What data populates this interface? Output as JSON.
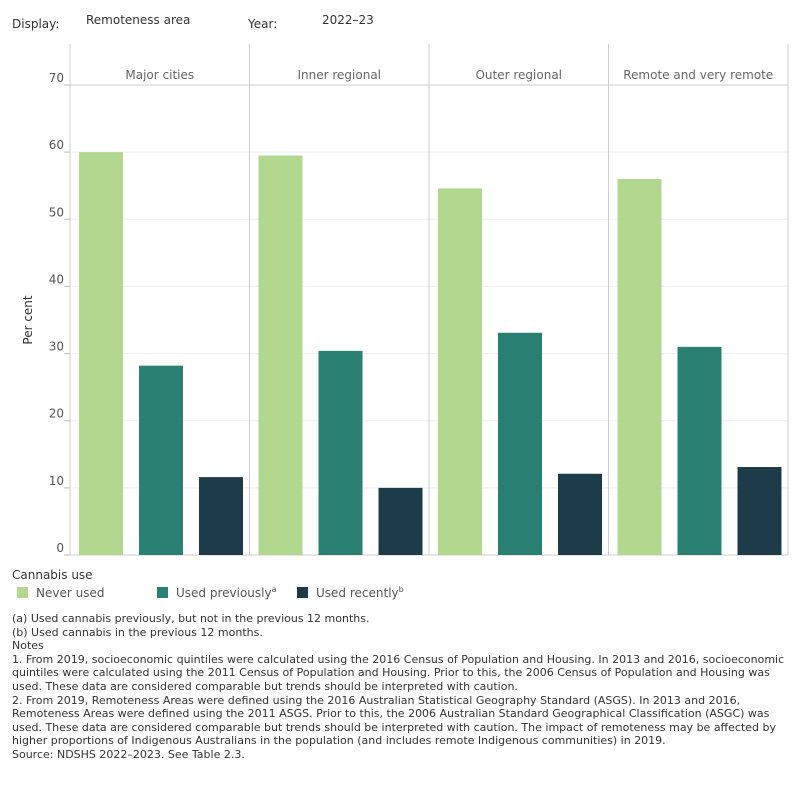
{
  "controls": {
    "display_label": "Display:",
    "display_value": "Remoteness area",
    "year_label": "Year:",
    "year_value": "2022–23"
  },
  "chart_data": {
    "type": "bar",
    "ylabel": "Per cent",
    "ylim": [
      0,
      70
    ],
    "yticks": [
      0,
      10,
      20,
      30,
      40,
      50,
      60,
      70
    ],
    "grid": true,
    "panels": [
      "Major cities",
      "Inner regional",
      "Outer regional",
      "Remote and very remote"
    ],
    "series": [
      {
        "name": "Never used",
        "color": "#b2d88f",
        "values": [
          60.0,
          59.5,
          54.6,
          56.0
        ]
      },
      {
        "name": "Used previously",
        "color": "#2a8173",
        "values": [
          28.2,
          30.4,
          33.1,
          31.0
        ]
      },
      {
        "name": "Used recently",
        "color": "#1c3c4a",
        "values": [
          11.6,
          10.0,
          12.1,
          13.1
        ]
      }
    ],
    "legend_title": "Cannabis use",
    "legend_placement": "bottom",
    "legend": [
      {
        "label": "Never used",
        "sup": ""
      },
      {
        "label": "Used previously",
        "sup": "a"
      },
      {
        "label": "Used recently",
        "sup": "b"
      }
    ]
  },
  "notes": [
    "(a) Used cannabis previously, but not in the previous 12 months.",
    "(b) Used cannabis in the previous 12 months.",
    "Notes",
    "1. From 2019, socioeconomic quintiles were calculated using the 2016 Census of Population and Housing. In 2013 and 2016, socioeconomic quintiles were calculated using the 2011 Census of Population and Housing. Prior to this, the 2006 Census of Population and Housing was used. These data are considered comparable but trends should be interpreted with caution.",
    "2. From 2019, Remoteness Areas were defined using the 2016 Australian Statistical Geography Standard (ASGS). In 2013 and 2016, Remoteness Areas were defined using the 2011 ASGS. Prior to this, the 2006 Australian Standard Geographical Classification (ASGC) was used. These data are considered comparable but trends should be interpreted with caution. The impact of remoteness may be affected by higher proportions of Indigenous Australians in the population (and includes remote Indigenous communities) in 2019.",
    "Source: NDSHS 2022–2023. See Table 2.3."
  ]
}
